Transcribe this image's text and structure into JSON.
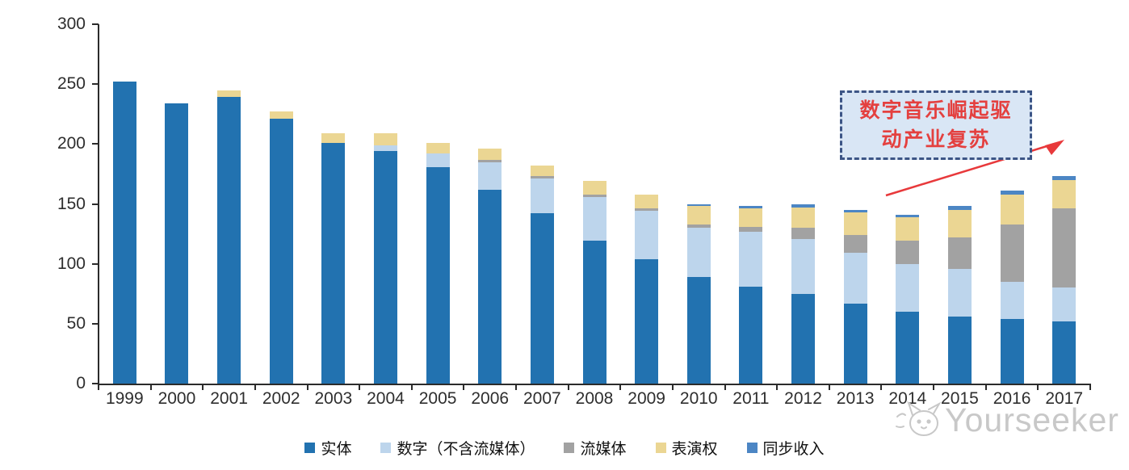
{
  "watermark": {
    "brand": "Yourseeker"
  },
  "colors": {
    "axis": "#2b2b2b",
    "annotation_fill": "#d9e6f5",
    "annotation_border": "#3c5586",
    "annotation_text": "#e4403f",
    "arrow": "#e8393b",
    "watermark": "#c8c8c8"
  },
  "chart_data": {
    "type": "bar",
    "stacked": true,
    "grid": false,
    "legend_position": "bottom",
    "title": "",
    "xlabel": "",
    "ylabel": "",
    "ylim": [
      0,
      300
    ],
    "yticks": [
      0,
      50,
      100,
      150,
      200,
      250,
      300
    ],
    "categories": [
      "1999",
      "2000",
      "2001",
      "2002",
      "2003",
      "2004",
      "2005",
      "2006",
      "2007",
      "2008",
      "2009",
      "2010",
      "2011",
      "2012",
      "2013",
      "2014",
      "2015",
      "2016",
      "2017"
    ],
    "series": [
      {
        "name": "实体",
        "color": "#2272b0",
        "values": [
          252,
          234,
          239,
          221,
          201,
          194,
          181,
          162,
          142,
          119,
          104,
          89,
          81,
          75,
          67,
          60,
          56,
          54,
          52
        ]
      },
      {
        "name": "数字（不含流媒体）",
        "color": "#bdd5ec",
        "values": [
          0,
          0,
          0,
          0,
          0,
          5,
          11,
          23,
          29,
          37,
          40,
          41,
          46,
          46,
          42,
          40,
          40,
          31,
          28
        ]
      },
      {
        "name": "流媒体",
        "color": "#a2a2a2",
        "values": [
          0,
          0,
          0,
          0,
          0,
          0,
          0,
          2,
          2,
          2,
          2,
          3,
          4,
          9,
          15,
          19,
          26,
          48,
          66
        ]
      },
      {
        "name": "表演权",
        "color": "#ebd693",
        "values": [
          0,
          0,
          6,
          6,
          8,
          10,
          9,
          9,
          9,
          11,
          12,
          15,
          15,
          17,
          19,
          20,
          23,
          25,
          24
        ]
      },
      {
        "name": "同步收入",
        "color": "#4c86c4",
        "values": [
          0,
          0,
          0,
          0,
          0,
          0,
          0,
          0,
          0,
          0,
          0,
          2,
          2,
          3,
          2,
          2,
          3,
          3,
          3
        ]
      }
    ],
    "annotation": {
      "line1": "数字音乐崛起驱",
      "line2": "动产业复苏"
    }
  }
}
